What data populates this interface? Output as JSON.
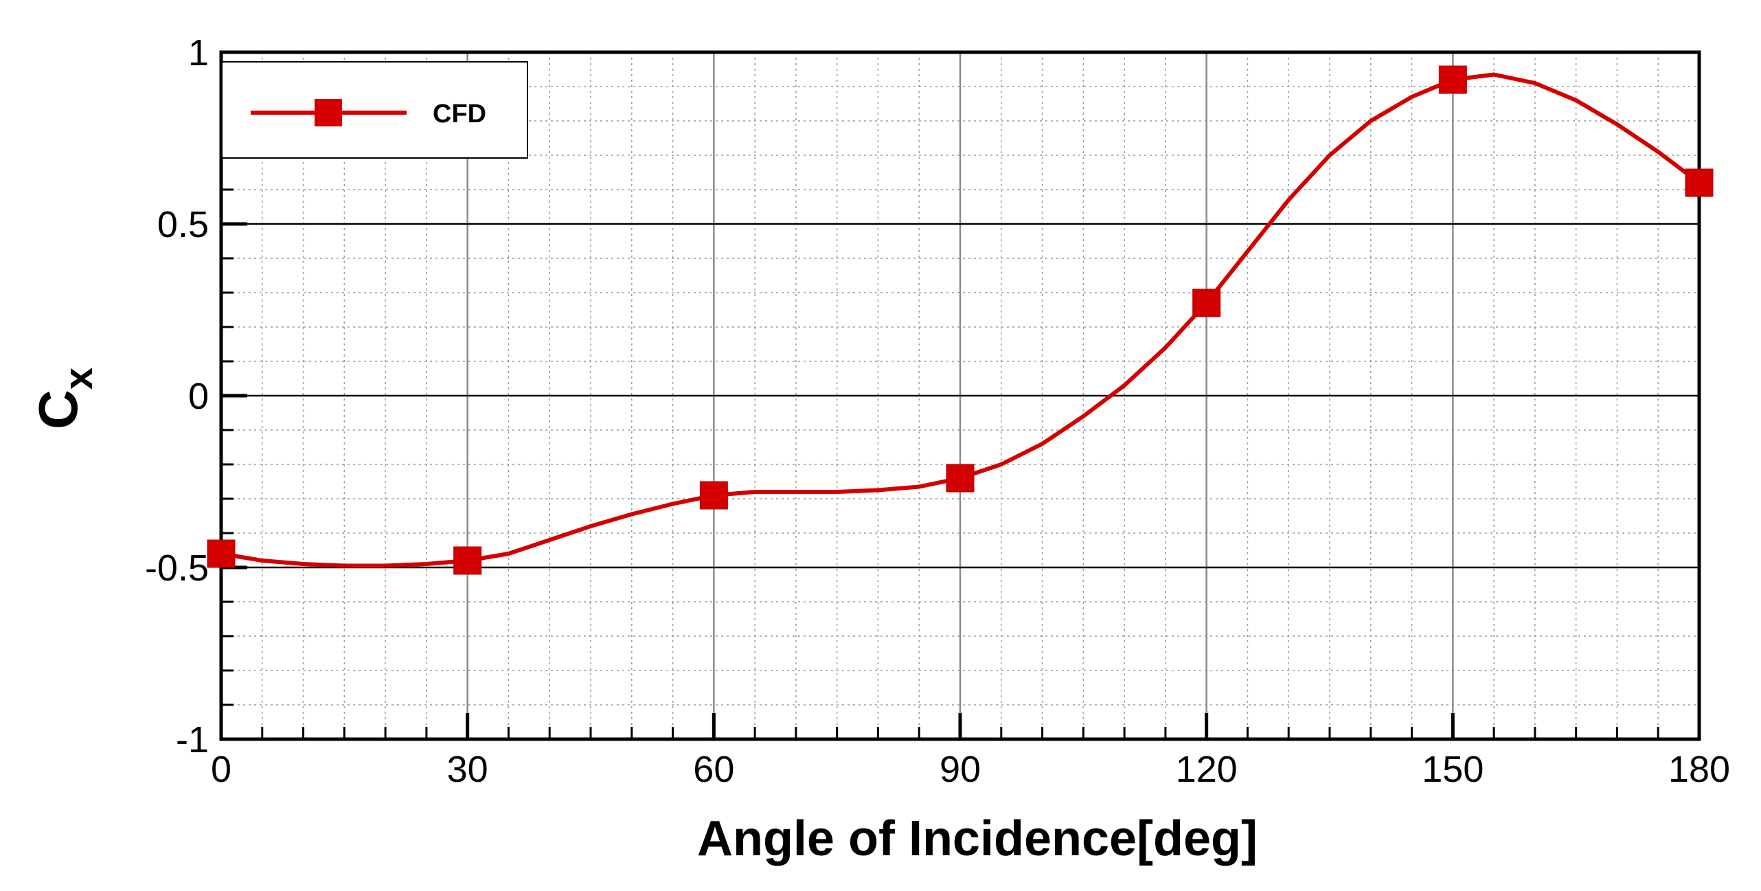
{
  "chart_data": {
    "type": "line",
    "title": "",
    "xlabel": "Angle of Incidence[deg]",
    "ylabel_main": "C",
    "ylabel_sub": "x",
    "xlim": [
      0,
      180
    ],
    "ylim": [
      -1,
      1
    ],
    "x_ticks": [
      0,
      30,
      60,
      90,
      120,
      150,
      180
    ],
    "x_tick_labels": [
      "0",
      "30",
      "60",
      "90",
      "120",
      "150",
      "180"
    ],
    "y_ticks": [
      -1,
      -0.5,
      0,
      0.5,
      1
    ],
    "y_tick_labels": [
      "-1",
      "-0.5",
      "0",
      "0.5",
      "1"
    ],
    "grid": true,
    "legend_position": "top-left",
    "series": [
      {
        "name": "CFD",
        "color": "#d40000",
        "marker": "square",
        "x": [
          0,
          30,
          60,
          90,
          120,
          150,
          180
        ],
        "values": [
          -0.46,
          -0.48,
          -0.29,
          -0.24,
          0.27,
          0.92,
          0.62
        ],
        "curve": [
          [
            0,
            -0.46
          ],
          [
            5,
            -0.48
          ],
          [
            10,
            -0.49
          ],
          [
            15,
            -0.495
          ],
          [
            20,
            -0.495
          ],
          [
            25,
            -0.49
          ],
          [
            30,
            -0.48
          ],
          [
            35,
            -0.46
          ],
          [
            40,
            -0.42
          ],
          [
            45,
            -0.38
          ],
          [
            50,
            -0.345
          ],
          [
            55,
            -0.315
          ],
          [
            60,
            -0.29
          ],
          [
            65,
            -0.28
          ],
          [
            70,
            -0.28
          ],
          [
            75,
            -0.28
          ],
          [
            80,
            -0.275
          ],
          [
            85,
            -0.265
          ],
          [
            90,
            -0.24
          ],
          [
            95,
            -0.2
          ],
          [
            100,
            -0.14
          ],
          [
            105,
            -0.06
          ],
          [
            110,
            0.03
          ],
          [
            115,
            0.14
          ],
          [
            120,
            0.27
          ],
          [
            125,
            0.42
          ],
          [
            130,
            0.57
          ],
          [
            135,
            0.7
          ],
          [
            140,
            0.8
          ],
          [
            145,
            0.87
          ],
          [
            150,
            0.92
          ],
          [
            155,
            0.935
          ],
          [
            160,
            0.91
          ],
          [
            165,
            0.86
          ],
          [
            170,
            0.79
          ],
          [
            175,
            0.71
          ],
          [
            180,
            0.62
          ]
        ]
      }
    ]
  }
}
